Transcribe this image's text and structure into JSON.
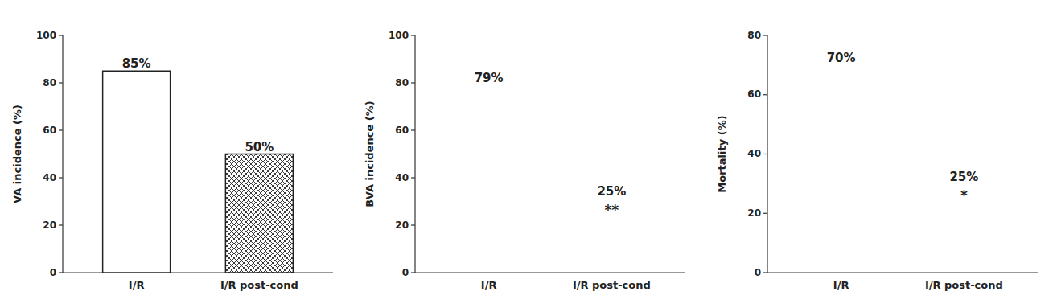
{
  "chart_data": [
    {
      "type": "bar",
      "ylabel": "VA incidence (%)",
      "categories": [
        "I/R",
        "I/R post-cond"
      ],
      "values": [
        85,
        50
      ],
      "value_labels": [
        "85%",
        "50%"
      ],
      "data_labels": true,
      "colors": [
        "white",
        "checkerboard"
      ],
      "ylim": [
        0,
        100
      ],
      "yticks": [
        0,
        20,
        40,
        60,
        80,
        100
      ],
      "grid": false
    },
    {
      "type": "bar",
      "ylabel": "BVA incidence (%)",
      "categories": [
        "I/R",
        "I/R post-cond"
      ],
      "values": [
        79,
        25
      ],
      "value_labels": [
        "79%",
        "25%"
      ],
      "data_labels": true,
      "colors": [
        "white",
        "checkerboard"
      ],
      "annotations": [
        {
          "category": "I/R post-cond",
          "text": "**"
        }
      ],
      "ylim": [
        0,
        100
      ],
      "yticks": [
        0,
        20,
        40,
        60,
        80,
        100
      ],
      "grid": false
    },
    {
      "type": "bar",
      "ylabel": "Mortality (%)",
      "categories": [
        "I/R",
        "I/R post-cond"
      ],
      "values": [
        70,
        25
      ],
      "value_labels": [
        "70%",
        "25%"
      ],
      "data_labels": true,
      "colors": [
        "white",
        "checkerboard"
      ],
      "annotations": [
        {
          "category": "I/R post-cond",
          "text": "*"
        }
      ],
      "ylim": [
        0,
        80
      ],
      "yticks": [
        0,
        20,
        40,
        60,
        80
      ],
      "grid": false
    }
  ]
}
